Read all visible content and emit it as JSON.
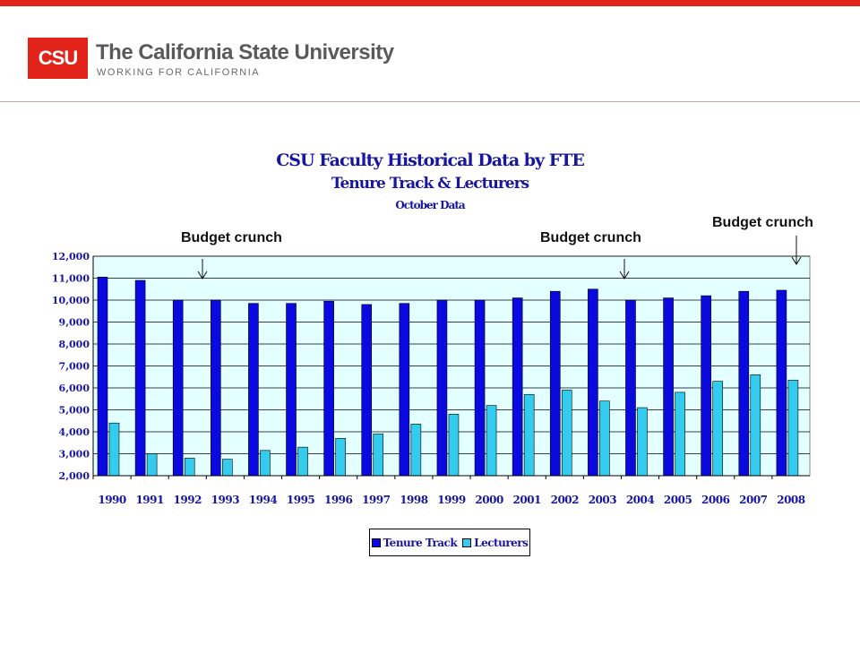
{
  "header": {
    "logo_text": "CSU",
    "title": "The California State University",
    "subtitle": "WORKING FOR CALIFORNIA"
  },
  "annotations": [
    "Budget crunch",
    "Budget crunch",
    "Budget crunch"
  ],
  "colors": {
    "brand_red": "#e2231a",
    "tenure_track": "#0a0ae0",
    "lecturers": "#33ccee",
    "plot_background": "#e4ffff"
  },
  "chart_data": {
    "type": "bar",
    "title": "CSU Faculty Historical Data by FTE",
    "subtitle": "Tenure Track & Lecturers",
    "subtitle2": "October Data",
    "xlabel": "",
    "ylabel": "",
    "ylim": [
      2000,
      12000
    ],
    "yticks": [
      "2,000",
      "3,000",
      "4,000",
      "5,000",
      "6,000",
      "7,000",
      "8,000",
      "9,000",
      "10,000",
      "11,000",
      "12,000"
    ],
    "grid": true,
    "legend_placement": "bottom-center",
    "categories": [
      "1990",
      "1991",
      "1992",
      "1993",
      "1994",
      "1995",
      "1996",
      "1997",
      "1998",
      "1999",
      "2000",
      "2001",
      "2002",
      "2003",
      "2004",
      "2005",
      "2006",
      "2007",
      "2008"
    ],
    "series": [
      {
        "name": "Tenure Track",
        "values": [
          11050,
          10900,
          10000,
          10000,
          9850,
          9850,
          9950,
          9800,
          9850,
          10000,
          10000,
          10100,
          10400,
          10500,
          10000,
          10100,
          10200,
          10400,
          10450
        ]
      },
      {
        "name": "Lecturers",
        "values": [
          4400,
          3000,
          2800,
          2750,
          3150,
          3300,
          3700,
          3900,
          4350,
          4800,
          5200,
          5700,
          5900,
          5400,
          5100,
          5800,
          6300,
          6600,
          6350
        ]
      }
    ]
  }
}
